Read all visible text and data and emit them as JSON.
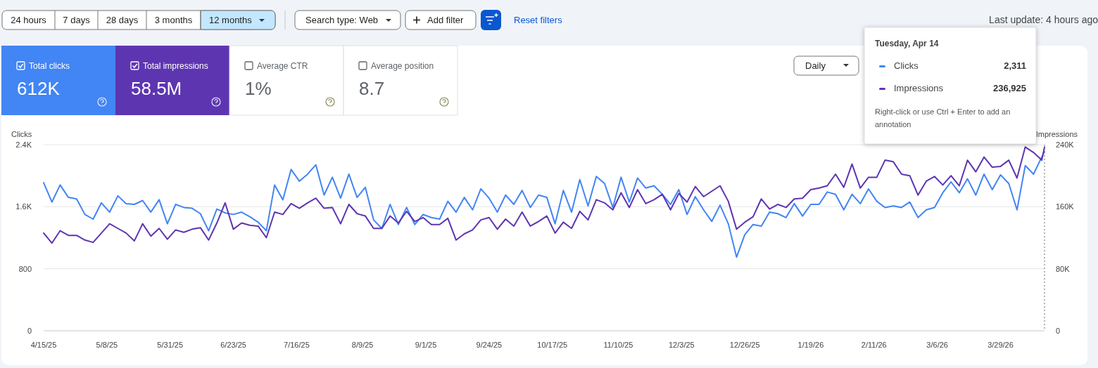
{
  "chart_data": {
    "type": "line",
    "ylabel": "Clicks",
    "y2label": "Impressions",
    "x": [
      "2025-04-15",
      "2025-04-18",
      "2025-04-21",
      "2025-04-24",
      "2025-04-27",
      "2025-04-30",
      "2025-05-03",
      "2025-05-06",
      "2025-05-09",
      "2025-05-12",
      "2025-05-15",
      "2025-05-18",
      "2025-05-21",
      "2025-05-24",
      "2025-05-27",
      "2025-05-30",
      "2025-06-02",
      "2025-06-05",
      "2025-06-08",
      "2025-06-11",
      "2025-06-14",
      "2025-06-17",
      "2025-06-20",
      "2025-06-23",
      "2025-06-26",
      "2025-06-29",
      "2025-07-02",
      "2025-07-05",
      "2025-07-08",
      "2025-07-11",
      "2025-07-14",
      "2025-07-17",
      "2025-07-20",
      "2025-07-23",
      "2025-07-26",
      "2025-07-29",
      "2025-08-01",
      "2025-08-04",
      "2025-08-07",
      "2025-08-10",
      "2025-08-13",
      "2025-08-16",
      "2025-08-19",
      "2025-08-22",
      "2025-08-25",
      "2025-08-28",
      "2025-08-31",
      "2025-09-03",
      "2025-09-06",
      "2025-09-09",
      "2025-09-12",
      "2025-09-15",
      "2025-09-18",
      "2025-09-21",
      "2025-09-24",
      "2025-09-27",
      "2025-09-30",
      "2025-10-03",
      "2025-10-06",
      "2025-10-09",
      "2025-10-12",
      "2025-10-15",
      "2025-10-18",
      "2025-10-21",
      "2025-10-24",
      "2025-10-27",
      "2025-10-30",
      "2025-11-02",
      "2025-11-05",
      "2025-11-08",
      "2025-11-11",
      "2025-11-14",
      "2025-11-17",
      "2025-11-20",
      "2025-11-23",
      "2025-11-26",
      "2025-11-29",
      "2025-12-02",
      "2025-12-05",
      "2025-12-08",
      "2025-12-11",
      "2025-12-14",
      "2025-12-17",
      "2025-12-20",
      "2025-12-23",
      "2025-12-26",
      "2025-12-29",
      "2026-01-01",
      "2026-01-04",
      "2026-01-07",
      "2026-01-10",
      "2026-01-13",
      "2026-01-16",
      "2026-01-19",
      "2026-01-22",
      "2026-01-25",
      "2026-01-28",
      "2026-01-31",
      "2026-02-03",
      "2026-02-06",
      "2026-02-09",
      "2026-02-12",
      "2026-02-15",
      "2026-02-18",
      "2026-02-21",
      "2026-02-24",
      "2026-02-27",
      "2026-03-02",
      "2026-03-05",
      "2026-03-08",
      "2026-03-11",
      "2026-03-14",
      "2026-03-17",
      "2026-03-20",
      "2026-03-23",
      "2026-03-26",
      "2026-03-29",
      "2026-04-01",
      "2026-04-04",
      "2026-04-07",
      "2026-04-10",
      "2026-04-13",
      "2026-04-14"
    ],
    "series": [
      {
        "name": "Clicks",
        "color": "#4285f4",
        "values": [
          1910,
          1660,
          1880,
          1720,
          1700,
          1500,
          1440,
          1650,
          1530,
          1740,
          1640,
          1630,
          1680,
          1530,
          1690,
          1380,
          1630,
          1590,
          1580,
          1510,
          1290,
          1570,
          1520,
          1500,
          1530,
          1470,
          1400,
          1290,
          1880,
          1690,
          2080,
          1930,
          2020,
          2140,
          1750,
          1980,
          1710,
          2020,
          1720,
          1850,
          1430,
          1320,
          1630,
          1370,
          1590,
          1370,
          1500,
          1460,
          1440,
          1670,
          1530,
          1720,
          1560,
          1830,
          1710,
          1530,
          1750,
          1630,
          1810,
          1590,
          1750,
          1720,
          1380,
          1810,
          1530,
          1950,
          1610,
          1990,
          1900,
          1590,
          1980,
          1660,
          1970,
          1840,
          1870,
          1760,
          1630,
          1820,
          1500,
          1730,
          1560,
          1410,
          1620,
          1380,
          950,
          1240,
          1370,
          1350,
          1530,
          1510,
          1460,
          1640,
          1480,
          1630,
          1630,
          1790,
          1760,
          1560,
          1760,
          1640,
          1830,
          1670,
          1590,
          1610,
          1590,
          1660,
          1460,
          1560,
          1590,
          1780,
          1920,
          1780,
          1960,
          1750,
          2020,
          1820,
          2010,
          1900,
          1560,
          2130,
          2020,
          2240,
          2311
        ]
      },
      {
        "name": "Impressions",
        "color": "#5e35b1",
        "axis": "y2",
        "values": [
          126000,
          113000,
          129000,
          123000,
          123000,
          117000,
          114000,
          126000,
          138000,
          132000,
          126000,
          116000,
          138000,
          122000,
          132000,
          118000,
          130000,
          127000,
          131000,
          133000,
          117000,
          139000,
          165000,
          131000,
          139000,
          136000,
          135000,
          120000,
          153000,
          150000,
          164000,
          158000,
          165000,
          171000,
          158000,
          159000,
          138000,
          163000,
          151000,
          148000,
          132000,
          132000,
          148000,
          139000,
          154000,
          141000,
          146000,
          137000,
          137000,
          145000,
          117000,
          125000,
          130000,
          143000,
          146000,
          131000,
          144000,
          135000,
          153000,
          135000,
          141000,
          148000,
          126000,
          140000,
          132000,
          154000,
          143000,
          169000,
          165000,
          156000,
          178000,
          159000,
          182000,
          164000,
          169000,
          176000,
          156000,
          177000,
          166000,
          186000,
          173000,
          180000,
          187000,
          167000,
          131000,
          140000,
          147000,
          170000,
          157000,
          163000,
          159000,
          170000,
          171000,
          182000,
          184000,
          187000,
          202000,
          185000,
          215000,
          184000,
          198000,
          198000,
          220000,
          218000,
          202000,
          200000,
          175000,
          193000,
          199000,
          188000,
          200000,
          187000,
          220000,
          205000,
          224000,
          211000,
          212000,
          220000,
          197000,
          237000,
          230000,
          220000,
          236925
        ]
      }
    ],
    "xlim": [
      "2025-04-15",
      "2026-04-14"
    ],
    "xticks": [
      {
        "value": "2025-04-15",
        "label": "4/15/25"
      },
      {
        "value": "2025-05-08",
        "label": "5/8/25"
      },
      {
        "value": "2025-05-31",
        "label": "5/31/25"
      },
      {
        "value": "2025-06-23",
        "label": "6/23/25"
      },
      {
        "value": "2025-07-16",
        "label": "7/16/25"
      },
      {
        "value": "2025-08-09",
        "label": "8/9/25"
      },
      {
        "value": "2025-09-01",
        "label": "9/1/25"
      },
      {
        "value": "2025-09-24",
        "label": "9/24/25"
      },
      {
        "value": "2025-10-17",
        "label": "10/17/25"
      },
      {
        "value": "2025-11-10",
        "label": "11/10/25"
      },
      {
        "value": "2025-12-03",
        "label": "12/3/25"
      },
      {
        "value": "2025-12-26",
        "label": "12/26/25"
      },
      {
        "value": "2026-01-19",
        "label": "1/19/26"
      },
      {
        "value": "2026-02-11",
        "label": "2/11/26"
      },
      {
        "value": "2026-03-06",
        "label": "3/6/26"
      },
      {
        "value": "2026-03-29",
        "label": "3/29/26"
      }
    ],
    "ylim": [
      0,
      2400
    ],
    "yticks": [
      0,
      800,
      {
        "value": 1600,
        "label": "1.6K"
      },
      {
        "value": 2400,
        "label": "2.4K"
      }
    ],
    "y2lim": [
      0,
      240000
    ],
    "y2ticks": [
      0,
      {
        "value": 80000,
        "label": "80K"
      },
      {
        "value": 160000,
        "label": "160K"
      },
      {
        "value": 240000,
        "label": "240K"
      }
    ],
    "grid": "y",
    "legend": "top right",
    "ref_lines": [
      {
        "axis": "x",
        "value": "2026-04-14",
        "color": "#9e9e9e",
        "line_style": "dotted"
      }
    ],
    "annotations": [
      "24 hours",
      "7 days",
      "28 days",
      "3 months",
      "12 months",
      "Search type: Web",
      "Add filter",
      "Reset filters",
      "Last update: 4 hours ago",
      "Total clicks",
      "612K",
      "Total impressions",
      "58.5M",
      "Average CTR",
      "1%",
      "Average position",
      "8.7",
      "Daily",
      "Tuesday, Apr 14",
      "Right-click or use Ctrl + Enter to add an",
      "annotation",
      "2,311",
      "236,925"
    ]
  }
}
